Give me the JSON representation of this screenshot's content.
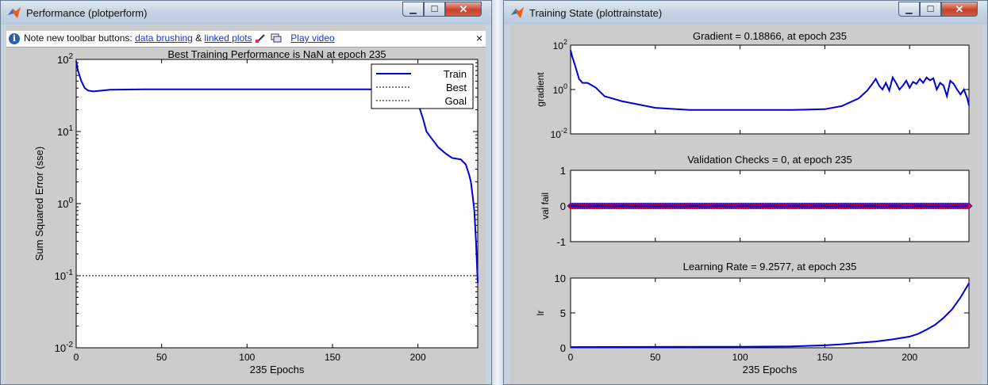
{
  "performance_window": {
    "title": "Performance (plotperform)",
    "infobar": {
      "note": "Note new toolbar buttons:",
      "link_brushing": "data brushing",
      "amp": "&",
      "link_linked": "linked plots",
      "link_video": "Play video",
      "close": "×"
    },
    "plot_title": "Best Training Performance is NaN at epoch 235",
    "chart_data": {
      "type": "line",
      "title": "Best Training Performance is NaN at epoch 235",
      "xlabel": "235 Epochs",
      "ylabel": "Sum Squared Error  (sse)",
      "xlim": [
        0,
        235
      ],
      "ylim": [
        0.01,
        100
      ],
      "yscale": "log",
      "x_ticks": [
        "0",
        "50",
        "100",
        "150",
        "200"
      ],
      "y_ticks": [
        {
          "base": "10",
          "exp": "2"
        },
        {
          "base": "10",
          "exp": "1"
        },
        {
          "base": "10",
          "exp": "0"
        },
        {
          "base": "10",
          "exp": "-1"
        },
        {
          "base": "10",
          "exp": "-2"
        }
      ],
      "legend": {
        "position": "top-right",
        "entries": [
          "Train",
          "Best",
          "Goal"
        ]
      },
      "goal": 0.1,
      "series": [
        {
          "name": "Train",
          "color": "#0000d8",
          "x": [
            0,
            1,
            3,
            5,
            7,
            10,
            15,
            20,
            40,
            60,
            100,
            150,
            180,
            190,
            195,
            200,
            203,
            205,
            208,
            212,
            216,
            220,
            225,
            228,
            230,
            231,
            232,
            233,
            234,
            235
          ],
          "y": [
            95,
            70,
            50,
            40,
            37,
            36,
            37,
            38,
            38.5,
            38.5,
            38.5,
            38.5,
            38.5,
            38,
            36,
            25,
            15,
            10,
            8,
            6,
            5,
            4.3,
            4.1,
            3.5,
            2.5,
            2,
            1.3,
            0.8,
            0.3,
            0.08
          ]
        }
      ]
    }
  },
  "training_window": {
    "title": "Training State (plottrainstate)",
    "gradient": {
      "title": "Gradient = 0.18866, at epoch 235",
      "chart_data": {
        "type": "line",
        "title": "Gradient = 0.18866, at epoch 235",
        "ylabel": "gradient",
        "xlim": [
          0,
          235
        ],
        "ylim": [
          0.01,
          100
        ],
        "yscale": "log",
        "y_ticks": [
          {
            "base": "10",
            "exp": "2"
          },
          {
            "base": "10",
            "exp": "0"
          },
          {
            "base": "10",
            "exp": "-2"
          }
        ],
        "x": [
          0,
          1,
          3,
          5,
          7,
          10,
          15,
          20,
          30,
          50,
          70,
          100,
          130,
          150,
          160,
          170,
          175,
          178,
          180,
          182,
          184,
          186,
          188,
          190,
          192,
          194,
          196,
          198,
          200,
          202,
          204,
          206,
          208,
          210,
          212,
          214,
          216,
          218,
          220,
          222,
          224,
          226,
          228,
          230,
          232,
          234,
          235
        ],
        "y": [
          60,
          30,
          10,
          3,
          2,
          2,
          1.2,
          0.5,
          0.3,
          0.15,
          0.12,
          0.12,
          0.12,
          0.13,
          0.18,
          0.4,
          0.9,
          1.8,
          3,
          1.5,
          1,
          2,
          0.9,
          3.5,
          2,
          1,
          1.5,
          2.5,
          1.2,
          2.2,
          1.8,
          3,
          2,
          3.5,
          2.6,
          3.2,
          1,
          2,
          1.5,
          0.5,
          2.5,
          1.8,
          1,
          0.6,
          1,
          0.4,
          0.19
        ]
      }
    },
    "validation": {
      "title": "Validation Checks = 0, at epoch 235",
      "chart_data": {
        "type": "scatter",
        "title": "Validation Checks = 0, at epoch 235",
        "ylabel": "val fail",
        "xlim": [
          0,
          235
        ],
        "ylim": [
          -1,
          1
        ],
        "y_ticks": [
          "1",
          "0",
          "-1"
        ],
        "x_start": 0,
        "x_end": 235,
        "value": 0,
        "marker_color": "#ff0000",
        "line_color": "#0000d8"
      }
    },
    "learning_rate": {
      "title": "Learning Rate = 9.2577, at epoch 235",
      "chart_data": {
        "type": "line",
        "title": "Learning Rate = 9.2577, at epoch 235",
        "xlabel": "235 Epochs",
        "ylabel": "lr",
        "xlim": [
          0,
          235
        ],
        "ylim": [
          0,
          10
        ],
        "y_ticks": [
          "10",
          "5",
          "0"
        ],
        "x_ticks": [
          "0",
          "50",
          "100",
          "150",
          "200"
        ],
        "x": [
          0,
          50,
          100,
          130,
          150,
          160,
          170,
          180,
          190,
          200,
          205,
          210,
          215,
          220,
          225,
          230,
          235
        ],
        "y": [
          0.1,
          0.12,
          0.15,
          0.2,
          0.35,
          0.5,
          0.7,
          0.9,
          1.2,
          1.6,
          2.0,
          2.6,
          3.3,
          4.3,
          5.5,
          7.2,
          9.2577
        ]
      }
    }
  }
}
